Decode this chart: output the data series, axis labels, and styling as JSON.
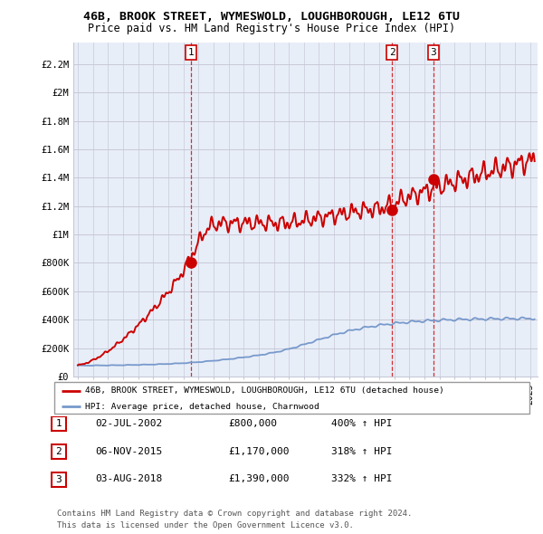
{
  "title_line1": "46B, BROOK STREET, WYMESWOLD, LOUGHBOROUGH, LE12 6TU",
  "title_line2": "Price paid vs. HM Land Registry's House Price Index (HPI)",
  "ylabel_ticks": [
    "£0",
    "£200K",
    "£400K",
    "£600K",
    "£800K",
    "£1M",
    "£1.2M",
    "£1.4M",
    "£1.6M",
    "£1.8M",
    "£2M",
    "£2.2M"
  ],
  "ytick_values": [
    0,
    200000,
    400000,
    600000,
    800000,
    1000000,
    1200000,
    1400000,
    1600000,
    1800000,
    2000000,
    2200000
  ],
  "xlim_start": 1994.7,
  "xlim_end": 2025.5,
  "ylim_min": 0,
  "ylim_max": 2350000,
  "sale_markers": [
    {
      "year": 2002.5,
      "price": 800000,
      "label": "1"
    },
    {
      "year": 2015.85,
      "price": 1170000,
      "label": "2"
    },
    {
      "year": 2018.58,
      "price": 1390000,
      "label": "3"
    }
  ],
  "legend_red": "46B, BROOK STREET, WYMESWOLD, LOUGHBOROUGH, LE12 6TU (detached house)",
  "legend_blue": "HPI: Average price, detached house, Charnwood",
  "table_rows": [
    {
      "num": "1",
      "date": "02-JUL-2002",
      "price": "£800,000",
      "hpi": "400% ↑ HPI"
    },
    {
      "num": "2",
      "date": "06-NOV-2015",
      "price": "£1,170,000",
      "hpi": "318% ↑ HPI"
    },
    {
      "num": "3",
      "date": "03-AUG-2018",
      "price": "£1,390,000",
      "hpi": "332% ↑ HPI"
    }
  ],
  "footnote1": "Contains HM Land Registry data © Crown copyright and database right 2024.",
  "footnote2": "This data is licensed under the Open Government Licence v3.0.",
  "red_color": "#cc0000",
  "blue_color": "#7799cc",
  "grid_color": "#c8c8d8",
  "bg_chart": "#e8eef8",
  "background_color": "#ffffff",
  "dashed_color": "#cc0000",
  "label_box_color": "#cc0000"
}
